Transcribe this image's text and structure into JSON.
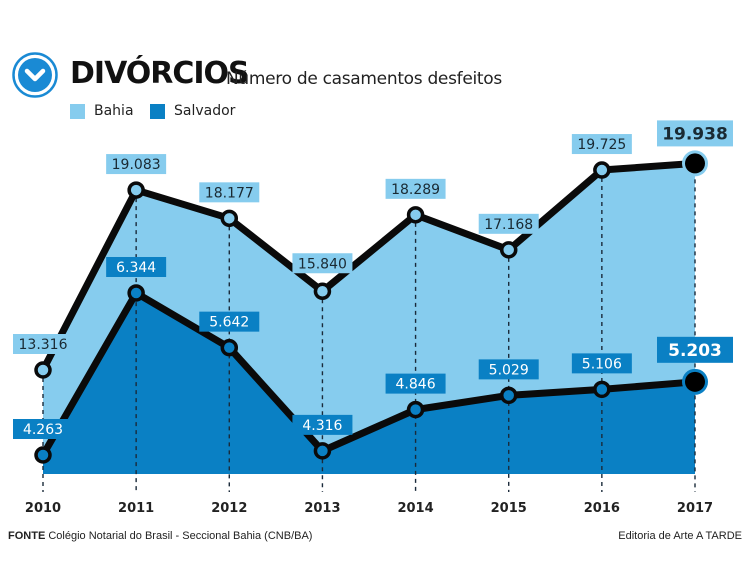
{
  "header": {
    "title": "DIVÓRCIOS",
    "subtitle": "Número de casamentos desfeitos",
    "icon": "chevron-down-circle-icon"
  },
  "colors": {
    "bahia": "#86ccee",
    "salvador": "#0a80c4",
    "line": "#0a0a0a",
    "label_text_dark": "#1a2a33",
    "label_text_light": "#ffffff",
    "logo": "#1a8ad4"
  },
  "footer": {
    "source_label": "FONTE",
    "source_text": "Colégio Notarial do Brasil - Seccional Bahia (CNB/BA)",
    "credit": "Editoria de Arte A TARDE"
  },
  "chart_data": {
    "type": "area",
    "title": "DIVÓRCIOS",
    "subtitle": "Número de casamentos desfeitos",
    "xlabel": "",
    "ylabel": "",
    "grid": false,
    "legend_position": "top-left",
    "categories": [
      "2010",
      "2011",
      "2012",
      "2013",
      "2014",
      "2015",
      "2016",
      "2017"
    ],
    "series": [
      {
        "name": "Bahia",
        "values": [
          13316,
          19083,
          18177,
          15840,
          18289,
          17168,
          19725,
          19938
        ],
        "labels": [
          "13.316",
          "19.083",
          "18.177",
          "15.840",
          "18.289",
          "17.168",
          "19.725",
          "19.938"
        ]
      },
      {
        "name": "Salvador",
        "values": [
          4263,
          6344,
          5642,
          4316,
          4846,
          5029,
          5106,
          5203
        ],
        "labels": [
          "4.263",
          "6.344",
          "5.642",
          "4.316",
          "4.846",
          "5.029",
          "5.106",
          "5.203"
        ]
      }
    ]
  }
}
